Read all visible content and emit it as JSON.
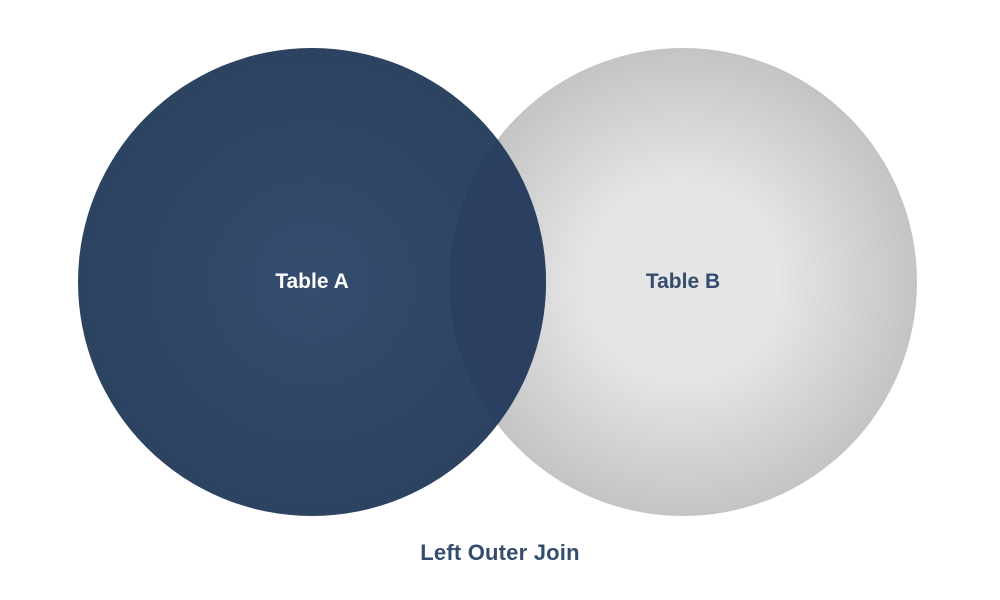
{
  "diagram": {
    "join_type": "left-outer-join",
    "caption": "Left Outer Join",
    "sets": [
      {
        "key": "a",
        "label": "Table A",
        "highlighted": true
      },
      {
        "key": "b",
        "label": "Table B",
        "highlighted": false
      }
    ],
    "overlap": {
      "highlighted": true
    }
  },
  "colors": {
    "highlight": "#344d6e",
    "highlight_edge": "#2c4361",
    "overlap": "#2b4060",
    "unhighlighted_center": "#e6e6e6",
    "unhighlighted_edge": "#c4c4c4",
    "label_on_highlight": "#ffffff",
    "label_on_plain": "#344d6e",
    "caption": "#344d6e"
  }
}
